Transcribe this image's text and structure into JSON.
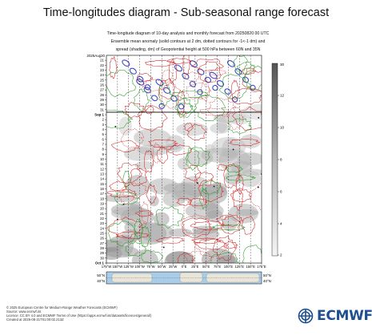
{
  "title": "Time-longitudes diagram - Sub-seasonal range forecast",
  "description": [
    "Time-longitude diagram of 10-day analysis and monthly forecast from 20250820 00 UTC",
    "Ensemble mean anomaly (solid contours at 2 dm, dotted contours for -1<-1 dm) and",
    "spread (shading, dm) of Geopotential height at 500 hPa between 60N and 35N"
  ],
  "footer": [
    "© 2025 European Centre for Medium-Range Weather Forecasts (ECMWF)",
    "Source: www.ecmwf.int",
    "Licence: CC BY 4.0 and ECMWF Terms of Use (https://apps.ecmwf.int/datasets/licences/general/)",
    "Created at 2025-08-21T01:00:02.213Z"
  ],
  "logo": {
    "text": "ECMWF",
    "icon": "ecmwf-logo-icon"
  },
  "chart_data": {
    "type": "heatmap",
    "x_ticks": [
      "175°W",
      "150°W",
      "125°W",
      "100°W",
      "75°W",
      "50°W",
      "25°W",
      "0°E",
      "25°E",
      "50°E",
      "75°E",
      "100°E",
      "125°E",
      "150°E",
      "175°E"
    ],
    "y_start_label": "2025Aug20",
    "y_ticks": [
      "21",
      "22",
      "23",
      "24",
      "25",
      "26",
      "27",
      "28",
      "29",
      "30",
      "31",
      "Sep 1",
      "2",
      "3",
      "4",
      "5",
      "6",
      "7",
      "8",
      "9",
      "10",
      "11",
      "12",
      "13",
      "14",
      "15",
      "16",
      "17",
      "18",
      "19",
      "20",
      "21",
      "22",
      "23",
      "24",
      "25",
      "26",
      "27",
      "28",
      "29",
      "30",
      "Oct 1"
    ],
    "colorbar": {
      "ticks": [
        "2",
        "4",
        "6",
        "8",
        "10",
        "12"
      ],
      "top_label": "30",
      "min": 2,
      "max": 30
    },
    "analysis_forecast_boundary": "Aug 30/31",
    "anomaly_contours": {
      "positive_color": "#d62728",
      "negative_color": "#2ca02c",
      "intense_negative_fill": "#3b4bc8"
    },
    "inset_map": {
      "lat_labels": [
        "50°N",
        "40°N"
      ],
      "band": "60N-35N"
    }
  }
}
